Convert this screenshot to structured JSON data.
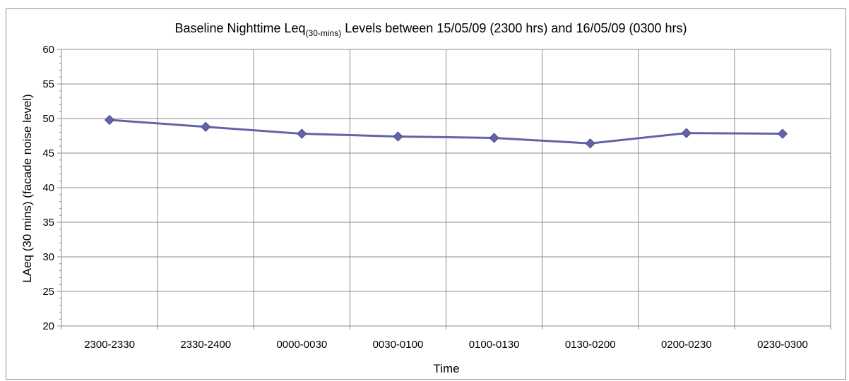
{
  "chart_data": {
    "type": "line",
    "title": {
      "prefix": "Baseline Nighttime Leq",
      "subscript": "(30-mins)",
      "suffix": " Levels between 15/05/09 (2300 hrs) and 16/05/09 (0300 hrs)"
    },
    "xlabel": "Time",
    "ylabel": "LAeq (30 mins) (facade noise level)",
    "categories": [
      "2300-2330",
      "2330-2400",
      "0000-0030",
      "0030-0100",
      "0100-0130",
      "0130-0200",
      "0200-0230",
      "0230-0300"
    ],
    "series": [
      {
        "values": [
          49.8,
          48.8,
          47.8,
          47.4,
          47.2,
          46.4,
          47.9,
          47.8
        ],
        "color": "#6264a7"
      }
    ],
    "ylim": [
      20,
      60
    ],
    "yticks": [
      20,
      25,
      30,
      35,
      40,
      45,
      50,
      55,
      60
    ],
    "grid": true,
    "legend": "none"
  }
}
